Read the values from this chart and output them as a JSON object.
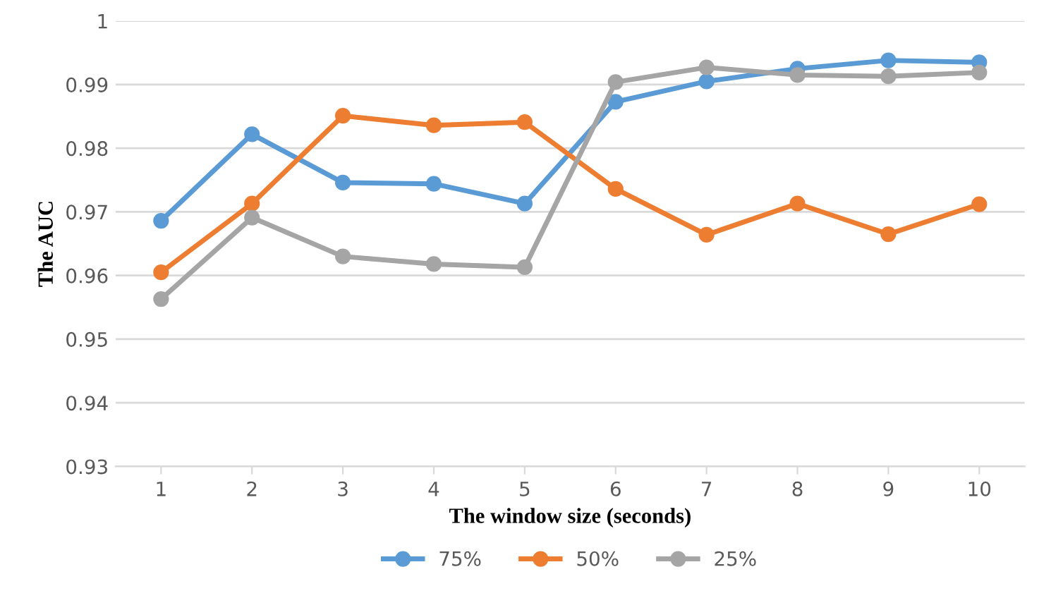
{
  "chart_data": {
    "type": "line",
    "xlabel": "The window size (seconds)",
    "ylabel": "The AUC",
    "categories": [
      "1",
      "2",
      "3",
      "4",
      "5",
      "6",
      "7",
      "8",
      "9",
      "10"
    ],
    "series": [
      {
        "name": "75%",
        "color": "#5b9bd5",
        "values": [
          0.9686,
          0.9822,
          0.9746,
          0.9744,
          0.9713,
          0.9873,
          0.9905,
          0.9925,
          0.9938,
          0.9935
        ]
      },
      {
        "name": "50%",
        "color": "#ed7d31",
        "values": [
          0.9605,
          0.9713,
          0.9851,
          0.9836,
          0.9841,
          0.9736,
          0.9664,
          0.9713,
          0.9665,
          0.9712
        ]
      },
      {
        "name": "25%",
        "color": "#a5a5a5",
        "values": [
          0.9563,
          0.9691,
          0.963,
          0.9618,
          0.9613,
          0.9904,
          0.9927,
          0.9915,
          0.9913,
          0.9919
        ]
      }
    ],
    "ylim": [
      0.93,
      1
    ],
    "yticks": [
      0.93,
      0.94,
      0.95,
      0.96,
      0.97,
      0.98,
      0.99,
      1
    ],
    "grid": "y",
    "legend": "bottom",
    "marker": "circle",
    "line_style": "solid"
  }
}
